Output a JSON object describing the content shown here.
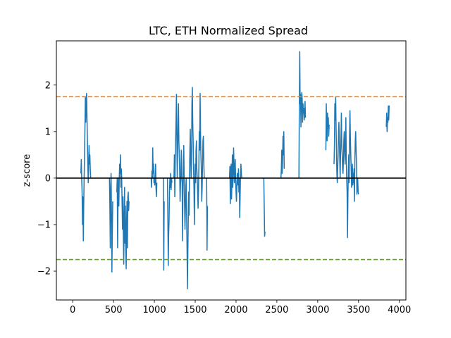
{
  "chart_data": {
    "type": "line",
    "title": "LTC, ETH Normalized Spread",
    "xlabel": "",
    "ylabel": "z-score",
    "xlim": [
      -200,
      4080
    ],
    "ylim": [
      -2.62,
      2.95
    ],
    "xticks": [
      0,
      500,
      1000,
      1500,
      2000,
      2500,
      3000,
      3500,
      4000
    ],
    "yticks": [
      -2,
      -1,
      0,
      1,
      2
    ],
    "grid": false,
    "colors": {
      "series": "#1f77b4",
      "zero_line": "#000000",
      "upper_line": "#ff7f0e",
      "lower_line": "#6a9a3a"
    },
    "reference_lines": [
      {
        "y": 0.0,
        "style": "solid"
      },
      {
        "y": 1.75,
        "style": "dashed"
      },
      {
        "y": -1.75,
        "style": "dashed"
      }
    ],
    "series": [
      {
        "values_segments": [
          {
            "x": [
              100,
              105,
              110,
              115,
              120,
              125,
              130,
              135,
              140,
              145,
              150,
              155,
              160,
              165,
              170,
              175,
              180,
              185,
              190,
              195,
              200,
              205,
              210,
              215,
              220
            ],
            "y": [
              0.1,
              0.4,
              0.0,
              -0.3,
              -1.0,
              -0.4,
              -1.35,
              -0.6,
              0.0,
              0.5,
              1.1,
              1.75,
              1.2,
              1.6,
              1.82,
              1.3,
              0.8,
              0.3,
              -0.1,
              0.2,
              0.7,
              0.3,
              0.5,
              0.2,
              0.0
            ]
          },
          {
            "x": [
              450,
              455,
              460,
              465,
              470,
              475,
              480,
              485,
              490
            ],
            "y": [
              0.0,
              -0.6,
              -1.5,
              -0.2,
              0.1,
              -0.8,
              -2.02,
              -1.2,
              -0.5
            ]
          },
          {
            "x": [
              540,
              545,
              550,
              555,
              560,
              565,
              570,
              575,
              580,
              585,
              590,
              595,
              600,
              605,
              610,
              615,
              620,
              625,
              630,
              635,
              640,
              645,
              650,
              655,
              660,
              665,
              670,
              675,
              680,
              685,
              690
            ],
            "y": [
              -0.3,
              0.0,
              -1.5,
              -0.5,
              0.0,
              -0.6,
              0.0,
              0.3,
              0.1,
              0.5,
              -0.2,
              0.2,
              0.0,
              -0.6,
              -1.1,
              -0.4,
              -1.2,
              -1.85,
              -0.8,
              -0.2,
              -1.4,
              -0.6,
              -1.6,
              -1.95,
              -0.9,
              -0.5,
              -1.5,
              -0.4,
              -0.3,
              -0.7,
              -0.5
            ]
          },
          {
            "x": [
              960,
              965,
              970,
              975,
              980,
              985,
              990,
              995,
              1000,
              1005,
              1010,
              1015,
              1020,
              1025,
              1030
            ],
            "y": [
              0.0,
              -0.2,
              0.15,
              0.0,
              0.65,
              0.1,
              0.3,
              -0.1,
              0.0,
              -0.15,
              0.1,
              0.3,
              -0.2,
              -0.4,
              -0.1
            ]
          },
          {
            "x": [
              1110,
              1115,
              1120
            ],
            "y": [
              0.0,
              -1.98,
              -0.5
            ]
          },
          {
            "x": [
              1160,
              1165,
              1170,
              1175,
              1180,
              1185,
              1190,
              1195,
              1200,
              1205,
              1210,
              1215
            ],
            "y": [
              0.0,
              -0.8,
              -1.88,
              -1.2,
              -0.9,
              -0.3,
              0.0,
              -0.2,
              0.1,
              -0.25,
              0.0,
              -0.1
            ]
          },
          {
            "x": [
              1240,
              1245,
              1250,
              1255,
              1260,
              1265,
              1270,
              1275,
              1280,
              1285,
              1290,
              1295,
              1300,
              1305,
              1310,
              1315,
              1320,
              1325,
              1330,
              1335,
              1340,
              1345,
              1350,
              1355,
              1360,
              1365,
              1370,
              1375,
              1380,
              1385,
              1390,
              1395,
              1400,
              1405,
              1410,
              1415,
              1420,
              1425,
              1430,
              1435,
              1440,
              1445,
              1450,
              1455,
              1460,
              1465,
              1470,
              1475,
              1480,
              1485,
              1490,
              1495,
              1500,
              1505,
              1510,
              1515,
              1520,
              1525,
              1530,
              1535,
              1540,
              1545,
              1550,
              1555,
              1560,
              1565,
              1570,
              1575,
              1580,
              1585,
              1590,
              1595,
              1600,
              1605,
              1610
            ],
            "y": [
              0.0,
              0.5,
              -0.4,
              0.3,
              0.8,
              1.2,
              1.8,
              0.9,
              0.0,
              0.6,
              1.2,
              1.6,
              0.8,
              0.5,
              0.1,
              -0.5,
              -0.15,
              0.2,
              0.6,
              0.0,
              -0.1,
              -1.35,
              -0.3,
              0.4,
              0.7,
              0.0,
              -0.6,
              -1.1,
              -0.7,
              -0.2,
              0.0,
              -0.8,
              -1.5,
              -2.38,
              -1.6,
              -0.9,
              -0.3,
              -0.8,
              0.1,
              0.6,
              1.05,
              0.4,
              0.0,
              0.3,
              1.6,
              1.95,
              1.2,
              0.8,
              0.2,
              -0.2,
              -1.0,
              -0.2,
              0.3,
              -0.1,
              0.6,
              0.8,
              0.2,
              0.0,
              -0.3,
              -0.65,
              -0.3,
              0.3,
              1.0,
              0.6,
              1.82,
              1.0,
              0.5,
              0.2,
              -0.5,
              -0.2,
              0.3,
              0.8,
              0.9,
              0.4,
              0.0
            ]
          },
          {
            "x": [
              1640,
              1645,
              1650
            ],
            "y": [
              0.0,
              -1.55,
              -0.6
            ]
          },
          {
            "x": [
              1920,
              1925,
              1930,
              1935,
              1940,
              1945,
              1950,
              1955,
              1960,
              1965,
              1970,
              1975,
              1980,
              1985,
              1990,
              1995,
              2000,
              2005,
              2010,
              2015,
              2020,
              2025,
              2030,
              2035,
              2040,
              2045,
              2050,
              2055,
              2060,
              2065,
              2070
            ],
            "y": [
              0.0,
              0.25,
              -0.55,
              0.1,
              0.3,
              -0.45,
              0.0,
              0.5,
              -0.2,
              0.1,
              0.65,
              0.3,
              -0.1,
              0.2,
              0.4,
              0.0,
              -0.3,
              -0.5,
              -0.2,
              0.1,
              0.0,
              -0.15,
              0.2,
              -0.3,
              0.0,
              -0.85,
              -0.4,
              0.1,
              0.3,
              0.1,
              0.0
            ]
          },
          {
            "x": [
              2340,
              2345,
              2350,
              2355
            ],
            "y": [
              0.0,
              -0.6,
              -1.25,
              -1.15
            ]
          },
          {
            "x": [
              2550,
              2555,
              2560,
              2565,
              2570,
              2575,
              2580,
              2585,
              2590
            ],
            "y": [
              0.0,
              0.2,
              0.6,
              0.1,
              0.4,
              0.9,
              0.5,
              1.0,
              0.2
            ]
          },
          {
            "x": [
              2770,
              2775,
              2780,
              2785,
              2790,
              2795,
              2800,
              2805,
              2810,
              2815,
              2820,
              2825,
              2830,
              2835,
              2840,
              2845,
              2850
            ],
            "y": [
              0.0,
              1.5,
              2.72,
              1.6,
              1.8,
              1.1,
              1.5,
              1.84,
              1.7,
              1.2,
              1.6,
              1.4,
              1.5,
              1.25,
              1.4,
              1.65,
              1.3
            ]
          },
          {
            "x": [
              3100,
              3105,
              3110,
              3115,
              3120,
              3125,
              3130,
              3135,
              3140
            ],
            "y": [
              0.6,
              1.6,
              1.0,
              0.8,
              1.4,
              1.1,
              1.3,
              0.9,
              1.15
            ]
          },
          {
            "x": [
              3200,
              3205,
              3210,
              3215,
              3220,
              3225,
              3230,
              3235,
              3240,
              3245,
              3250,
              3255,
              3260,
              3265,
              3270,
              3275,
              3280,
              3285,
              3290,
              3295,
              3300,
              3305,
              3310,
              3315,
              3320,
              3325,
              3330,
              3335,
              3340,
              3345,
              3350,
              3355,
              3360,
              3365,
              3370,
              3375,
              3380,
              3385,
              3390,
              3395,
              3400,
              3405,
              3410,
              3415,
              3420,
              3425,
              3430,
              3435,
              3440,
              3445,
              3450,
              3455,
              3460,
              3465,
              3470,
              3475,
              3480,
              3485,
              3490,
              3495,
              3500
            ],
            "y": [
              0.3,
              0.7,
              1.6,
              1.25,
              1.75,
              1.1,
              0.6,
              0.1,
              -0.1,
              0.2,
              0.5,
              1.0,
              1.2,
              0.8,
              0.4,
              0.0,
              0.5,
              0.9,
              1.4,
              0.7,
              0.5,
              0.2,
              0.1,
              0.4,
              0.8,
              1.0,
              0.6,
              0.3,
              0.8,
              1.3,
              0.4,
              0.0,
              -0.3,
              -1.28,
              -0.4,
              0.1,
              0.5,
              -0.1,
              0.9,
              1.45,
              0.9,
              0.5,
              0.2,
              -0.2,
              0.0,
              0.3,
              -0.15,
              0.1,
              -0.1,
              0.2,
              -0.5,
              0.4,
              0.8,
              1.0,
              0.6,
              0.3,
              -0.35,
              -0.1,
              0.0,
              -0.3,
              -0.35
            ]
          },
          {
            "x": [
              3840,
              3845,
              3850,
              3855,
              3860,
              3865,
              3870,
              3875
            ],
            "y": [
              1.1,
              1.4,
              1.0,
              1.3,
              1.2,
              1.55,
              1.25,
              1.56
            ]
          }
        ]
      }
    ]
  }
}
